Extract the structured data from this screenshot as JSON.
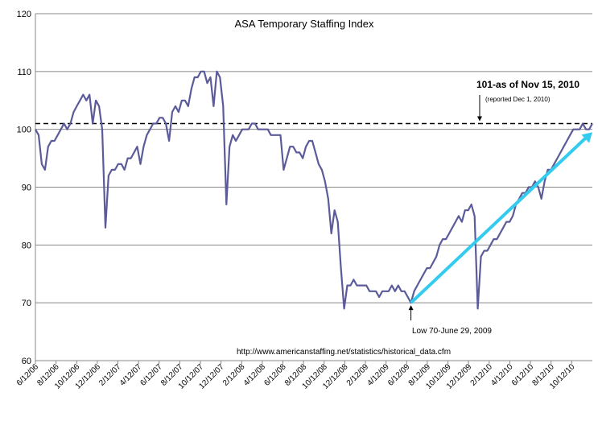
{
  "chart_data": {
    "type": "line",
    "title": "ASA Temporary Staffing Index",
    "ylim": [
      60,
      120
    ],
    "y_ticks": [
      "60",
      "70",
      "80",
      "90",
      "100",
      "110",
      "120"
    ],
    "x_ticks": [
      "6/12/06",
      "8/12/06",
      "10/12/06",
      "12/12/06",
      "2/12/07",
      "4/12/07",
      "6/12/07",
      "8/12/07",
      "10/12/07",
      "12/12/07",
      "2/12/08",
      "4/12/08",
      "6/12/08",
      "8/12/08",
      "10/12/08",
      "12/12/08",
      "2/12/09",
      "4/12/09",
      "6/12/09",
      "8/12/09",
      "10/12/09",
      "12/12/09",
      "2/12/10",
      "4/12/10",
      "6/12/10",
      "8/12/10",
      "10/12/10"
    ],
    "grid": "horizontal",
    "colors": {
      "series": "#5b5b9a",
      "trend": "#33ccee",
      "reference": "#000000",
      "grid": "#888888"
    },
    "series": [
      {
        "values": [
          [
            0,
            100
          ],
          [
            1,
            99
          ],
          [
            2,
            94
          ],
          [
            3,
            93
          ],
          [
            4,
            97
          ],
          [
            5,
            98
          ],
          [
            6,
            98
          ],
          [
            7,
            99
          ],
          [
            8,
            100
          ],
          [
            9,
            101
          ],
          [
            10,
            100
          ],
          [
            11,
            101
          ],
          [
            12,
            103
          ],
          [
            13,
            104
          ],
          [
            14,
            105
          ],
          [
            15,
            106
          ],
          [
            16,
            105
          ],
          [
            17,
            106
          ],
          [
            18,
            101
          ],
          [
            19,
            105
          ],
          [
            20,
            104
          ],
          [
            21,
            100
          ],
          [
            22,
            83
          ],
          [
            23,
            92
          ],
          [
            24,
            93
          ],
          [
            25,
            93
          ],
          [
            26,
            94
          ],
          [
            27,
            94
          ],
          [
            28,
            93
          ],
          [
            29,
            95
          ],
          [
            30,
            95
          ],
          [
            31,
            96
          ],
          [
            32,
            97
          ],
          [
            33,
            94
          ],
          [
            34,
            97
          ],
          [
            35,
            99
          ],
          [
            36,
            100
          ],
          [
            37,
            101
          ],
          [
            38,
            101
          ],
          [
            39,
            102
          ],
          [
            40,
            102
          ],
          [
            41,
            101
          ],
          [
            42,
            98
          ],
          [
            43,
            103
          ],
          [
            44,
            104
          ],
          [
            45,
            103
          ],
          [
            46,
            105
          ],
          [
            47,
            105
          ],
          [
            48,
            104
          ],
          [
            49,
            107
          ],
          [
            50,
            109
          ],
          [
            51,
            109
          ],
          [
            52,
            110
          ],
          [
            53,
            110
          ],
          [
            54,
            108
          ],
          [
            55,
            109
          ],
          [
            56,
            104
          ],
          [
            57,
            110
          ],
          [
            58,
            109
          ],
          [
            59,
            104
          ],
          [
            60,
            87
          ],
          [
            61,
            97
          ],
          [
            62,
            99
          ],
          [
            63,
            98
          ],
          [
            64,
            99
          ],
          [
            65,
            100
          ],
          [
            66,
            100
          ],
          [
            67,
            100
          ],
          [
            68,
            101
          ],
          [
            69,
            101
          ],
          [
            70,
            100
          ],
          [
            71,
            100
          ],
          [
            72,
            100
          ],
          [
            73,
            100
          ],
          [
            74,
            99
          ],
          [
            75,
            99
          ],
          [
            76,
            99
          ],
          [
            77,
            99
          ],
          [
            78,
            93
          ],
          [
            79,
            95
          ],
          [
            80,
            97
          ],
          [
            81,
            97
          ],
          [
            82,
            96
          ],
          [
            83,
            96
          ],
          [
            84,
            95
          ],
          [
            85,
            97
          ],
          [
            86,
            98
          ],
          [
            87,
            98
          ],
          [
            88,
            96
          ],
          [
            89,
            94
          ],
          [
            90,
            93
          ],
          [
            91,
            91
          ],
          [
            92,
            88
          ],
          [
            93,
            82
          ],
          [
            94,
            86
          ],
          [
            95,
            84
          ],
          [
            96,
            76
          ],
          [
            97,
            69
          ],
          [
            98,
            73
          ],
          [
            99,
            73
          ],
          [
            100,
            74
          ],
          [
            101,
            73
          ],
          [
            102,
            73
          ],
          [
            103,
            73
          ],
          [
            104,
            73
          ],
          [
            105,
            72
          ],
          [
            106,
            72
          ],
          [
            107,
            72
          ],
          [
            108,
            71
          ],
          [
            109,
            72
          ],
          [
            110,
            72
          ],
          [
            111,
            72
          ],
          [
            112,
            73
          ],
          [
            113,
            72
          ],
          [
            114,
            73
          ],
          [
            115,
            72
          ],
          [
            116,
            72
          ],
          [
            117,
            71
          ],
          [
            118,
            70
          ],
          [
            119,
            72
          ],
          [
            120,
            73
          ],
          [
            121,
            74
          ],
          [
            122,
            75
          ],
          [
            123,
            76
          ],
          [
            124,
            76
          ],
          [
            125,
            77
          ],
          [
            126,
            78
          ],
          [
            127,
            80
          ],
          [
            128,
            81
          ],
          [
            129,
            81
          ],
          [
            130,
            82
          ],
          [
            131,
            83
          ],
          [
            132,
            84
          ],
          [
            133,
            85
          ],
          [
            134,
            84
          ],
          [
            135,
            86
          ],
          [
            136,
            86
          ],
          [
            137,
            87
          ],
          [
            138,
            85
          ],
          [
            139,
            69
          ],
          [
            140,
            78
          ],
          [
            141,
            79
          ],
          [
            142,
            79
          ],
          [
            143,
            80
          ],
          [
            144,
            81
          ],
          [
            145,
            81
          ],
          [
            146,
            82
          ],
          [
            147,
            83
          ],
          [
            148,
            84
          ],
          [
            149,
            84
          ],
          [
            150,
            85
          ],
          [
            151,
            87
          ],
          [
            152,
            88
          ],
          [
            153,
            89
          ],
          [
            154,
            89
          ],
          [
            155,
            90
          ],
          [
            156,
            90
          ],
          [
            157,
            91
          ],
          [
            158,
            90
          ],
          [
            159,
            88
          ],
          [
            160,
            91
          ],
          [
            161,
            93
          ],
          [
            162,
            93
          ],
          [
            163,
            94
          ],
          [
            164,
            95
          ],
          [
            165,
            96
          ],
          [
            166,
            97
          ],
          [
            167,
            98
          ],
          [
            168,
            99
          ],
          [
            169,
            100
          ],
          [
            170,
            100
          ],
          [
            171,
            100
          ],
          [
            172,
            101
          ],
          [
            173,
            100
          ],
          [
            174,
            100
          ],
          [
            175,
            101
          ]
        ]
      }
    ],
    "reference_line": {
      "y": 101,
      "style": "dashed"
    },
    "trend_line": {
      "from": [
        118,
        70
      ],
      "to": [
        175,
        99.5
      ]
    },
    "annotations": [
      {
        "text": "101-as of Nov 15, 2010",
        "style": "bold"
      },
      {
        "text": "(reported Dec 1, 2010)",
        "style": "small"
      },
      {
        "text": "Low 70-June 29, 2009",
        "style": "normal"
      }
    ],
    "source_text": "http://www.americanstaffing.net/statistics/historical_data.cfm"
  }
}
